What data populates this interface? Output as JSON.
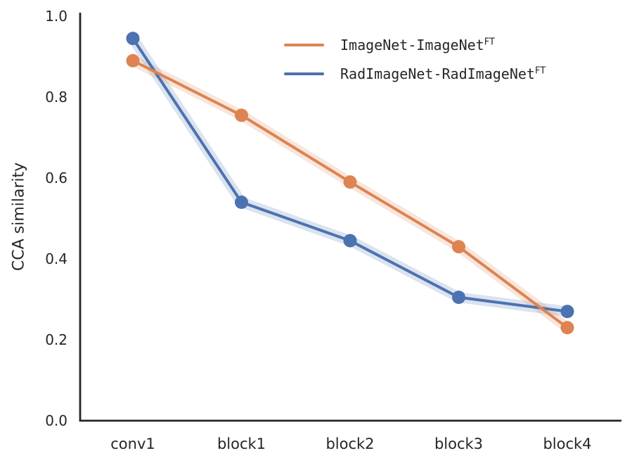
{
  "figure": {
    "ylabel": "CCA similarity",
    "background_color": "#ffffff",
    "text_color": "#262626",
    "spine_color": "#262626"
  },
  "legend": {
    "entries": [
      {
        "base": "ImageNet-ImageNet",
        "sup": "FT",
        "color": "#dd8452"
      },
      {
        "base": "RadImageNet-RadImageNet",
        "sup": "FT",
        "color": "#4c72b0"
      }
    ]
  },
  "chart_data": {
    "type": "line",
    "categories": [
      "conv1",
      "block1",
      "block2",
      "block3",
      "block4"
    ],
    "series": [
      {
        "name": "ImageNet-ImageNet^FT",
        "color": "#dd8452",
        "values": [
          0.89,
          0.755,
          0.59,
          0.43,
          0.23
        ],
        "marker": "circle",
        "ci_band": true
      },
      {
        "name": "RadImageNet-RadImageNet^FT",
        "color": "#4c72b0",
        "values": [
          0.945,
          0.54,
          0.445,
          0.305,
          0.27
        ],
        "marker": "circle",
        "ci_band": true
      }
    ],
    "title": "",
    "xlabel": "",
    "ylabel": "CCA similarity",
    "yticks": [
      0.0,
      0.2,
      0.4,
      0.6,
      0.8,
      1.0
    ],
    "ylim": [
      0.0,
      1.0
    ],
    "grid": false,
    "legend_position": "upper right",
    "spines": [
      "left",
      "bottom"
    ]
  }
}
